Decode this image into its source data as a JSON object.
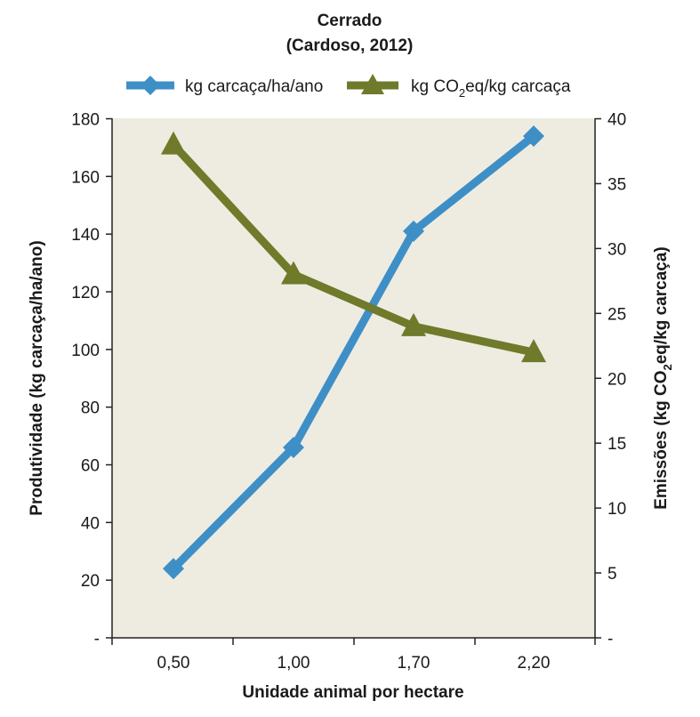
{
  "chart_data": {
    "type": "line",
    "title": "Cerrado",
    "subtitle": "(Cardoso, 2012)",
    "xlabel": "Unidade animal por hectare",
    "ylabel_left": "Produtividade (kg carcaça/ha/ano)",
    "ylabel_right_parts": [
      "Emissões (kg CO",
      "2",
      "eq/kg carcaça)"
    ],
    "categories": [
      "0,50",
      "1,00",
      "1,70",
      "2,20"
    ],
    "y_left": {
      "ticks": [
        "-",
        "20",
        "40",
        "60",
        "80",
        "100",
        "120",
        "140",
        "160",
        "180"
      ],
      "range": [
        0,
        180
      ]
    },
    "y_right": {
      "ticks": [
        "-",
        "5",
        "10",
        "15",
        "20",
        "25",
        "30",
        "35",
        "40"
      ],
      "range": [
        0,
        40
      ]
    },
    "series": [
      {
        "name": "kg carcaça/ha/ano",
        "axis": "left",
        "marker": "diamond",
        "color": "#3f8fc7",
        "values": [
          24,
          66,
          141,
          174
        ]
      },
      {
        "name_parts": [
          "kg CO",
          "2",
          "eq/kg carcaça"
        ],
        "axis": "right",
        "marker": "triangle",
        "color": "#6f7a2a",
        "values": [
          38,
          28,
          24,
          22
        ]
      }
    ],
    "legend_position": "top",
    "grid": false,
    "plot_background": "#eeece1"
  }
}
